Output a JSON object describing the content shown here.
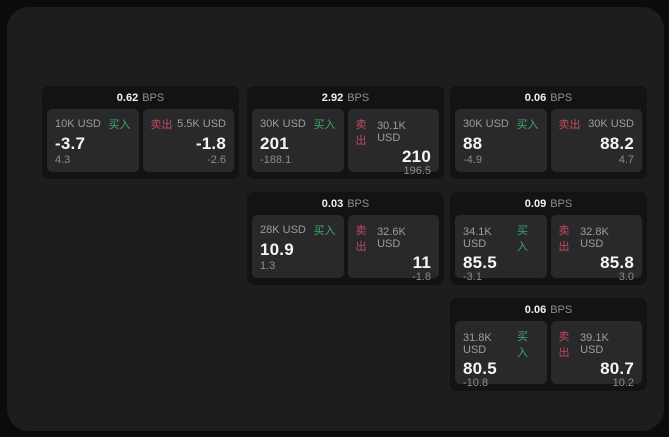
{
  "labels": {
    "bps_unit": "BPS",
    "buy": "买入",
    "sell": "卖出"
  },
  "colors": {
    "background": "#0b0b0b",
    "panel": "#1d1d1f",
    "card": "#131315",
    "tile": "#29292b",
    "buy_green": "#3fa869",
    "sell_red": "#c2495d"
  },
  "cards": [
    {
      "bps": "0.62",
      "buy": {
        "amount": "10K USD",
        "value": "-3.7",
        "change": "4.3"
      },
      "sell": {
        "amount": "5.5K USD",
        "value": "-1.8",
        "change": "-2.6"
      }
    },
    {
      "bps": "2.92",
      "buy": {
        "amount": "30K USD",
        "value": "201",
        "change": "-188.1"
      },
      "sell": {
        "amount": "30.1K USD",
        "value": "210",
        "change": "196.5"
      }
    },
    {
      "bps": "0.06",
      "buy": {
        "amount": "30K USD",
        "value": "88",
        "change": "-4.9"
      },
      "sell": {
        "amount": "30K USD",
        "value": "88.2",
        "change": "4.7"
      }
    },
    {
      "bps": "0.03",
      "buy": {
        "amount": "28K USD",
        "value": "10.9",
        "change": "1.3"
      },
      "sell": {
        "amount": "32.6K USD",
        "value": "11",
        "change": "-1.8"
      }
    },
    {
      "bps": "0.09",
      "buy": {
        "amount": "34.1K USD",
        "value": "85.5",
        "change": "-3.1"
      },
      "sell": {
        "amount": "32.8K USD",
        "value": "85.8",
        "change": "3.0"
      }
    },
    {
      "bps": "0.06",
      "buy": {
        "amount": "31.8K USD",
        "value": "80.5",
        "change": "-10.8"
      },
      "sell": {
        "amount": "39.1K USD",
        "value": "80.7",
        "change": "10.2"
      }
    }
  ]
}
